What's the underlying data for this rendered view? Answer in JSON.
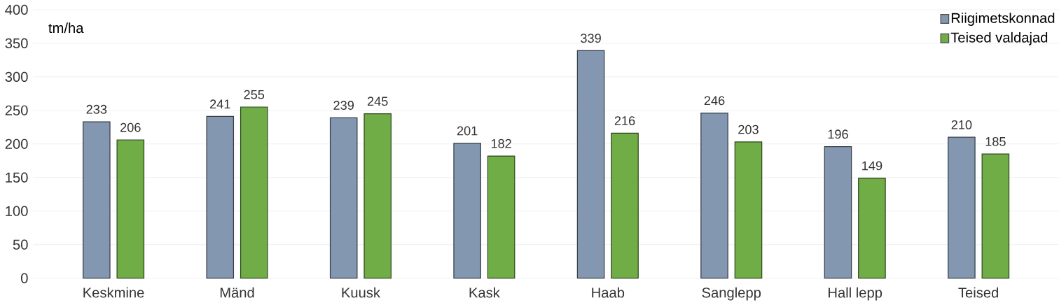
{
  "chart_data": {
    "type": "bar",
    "ylabel": "tm/ha",
    "categories": [
      "Keskmine",
      "Mänd",
      "Kuusk",
      "Kask",
      "Haab",
      "Sanglepp",
      "Hall lepp",
      "Teised"
    ],
    "series": [
      {
        "name": "Riigimetskonnad",
        "color": "#8497b0",
        "values": [
          233,
          241,
          239,
          201,
          339,
          246,
          196,
          210
        ]
      },
      {
        "name": "Teised valdajad",
        "color": "#70ad47",
        "values": [
          206,
          255,
          245,
          182,
          216,
          203,
          149,
          185
        ]
      }
    ],
    "ylim": [
      0,
      400
    ],
    "yticks": [
      0,
      50,
      100,
      150,
      200,
      250,
      300,
      350,
      400
    ],
    "grid": "y",
    "legend": "top right",
    "data_labels": true
  }
}
